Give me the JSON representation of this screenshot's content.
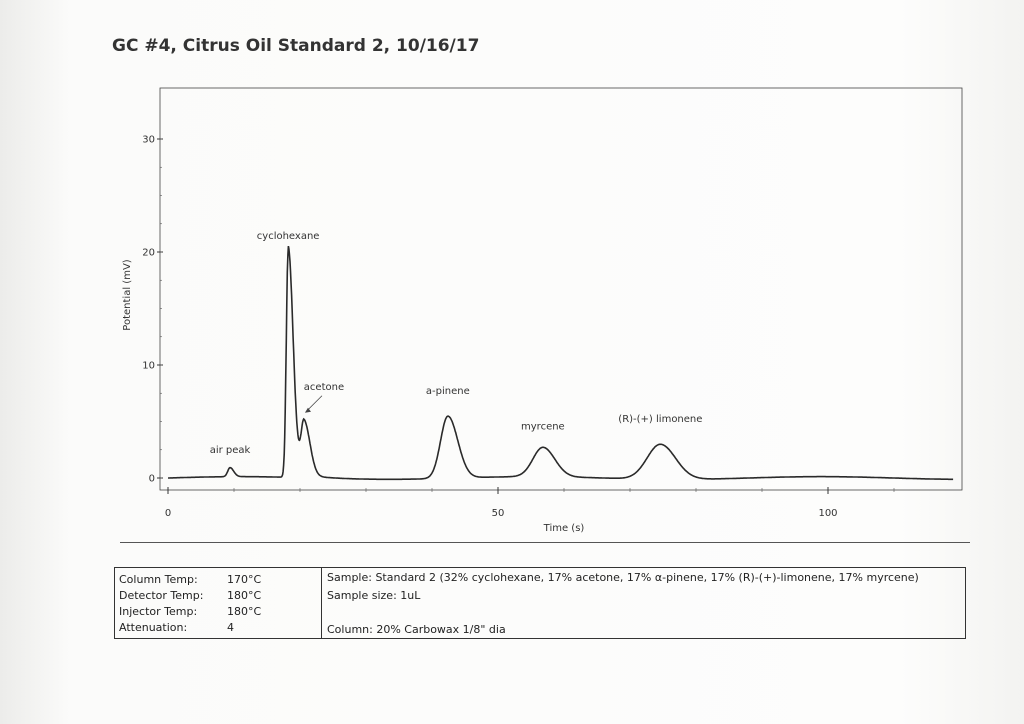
{
  "title": "GC #4, Citrus Oil Standard 2, 10/16/17",
  "chart_data": {
    "type": "line",
    "title": "GC #4, Citrus Oil Standard 2, 10/16/17",
    "xlabel": "Time (s)",
    "ylabel": "Potential (mV)",
    "xlim": [
      0,
      120
    ],
    "ylim": [
      -1.5,
      34
    ],
    "x_ticks": [
      0,
      50,
      100
    ],
    "y_ticks": [
      0,
      10,
      20,
      30
    ],
    "grid": false,
    "baseline": 0,
    "peaks": [
      {
        "label": "air peak",
        "x": 9.4,
        "y": 0.8
      },
      {
        "label": "cyclohexane",
        "x": 18.2,
        "y": 19.9
      },
      {
        "label": "acetone",
        "x": 20.6,
        "y": 4.8
      },
      {
        "label": "a-pinene",
        "x": 42.4,
        "y": 5.5
      },
      {
        "label": "myrcene",
        "x": 56.8,
        "y": 2.6
      },
      {
        "label": "(R)-(+) limonene",
        "x": 74.6,
        "y": 3.1
      }
    ]
  },
  "params": [
    {
      "name": "Column Temp:",
      "value": "170°C"
    },
    {
      "name": "Detector Temp:",
      "value": "180°C"
    },
    {
      "name": "Injector Temp:",
      "value": "180°C"
    },
    {
      "name": "Attenuation:",
      "value": "4"
    }
  ],
  "notes": {
    "sample": "Sample: Standard 2 (32% cyclohexane, 17% acetone, 17% α-pinene, 17% (R)-(+)-limonene, 17% myrcene)",
    "sample_size": "Sample size: 1uL",
    "column": "Column: 20% Carbowax 1/8\" dia"
  }
}
